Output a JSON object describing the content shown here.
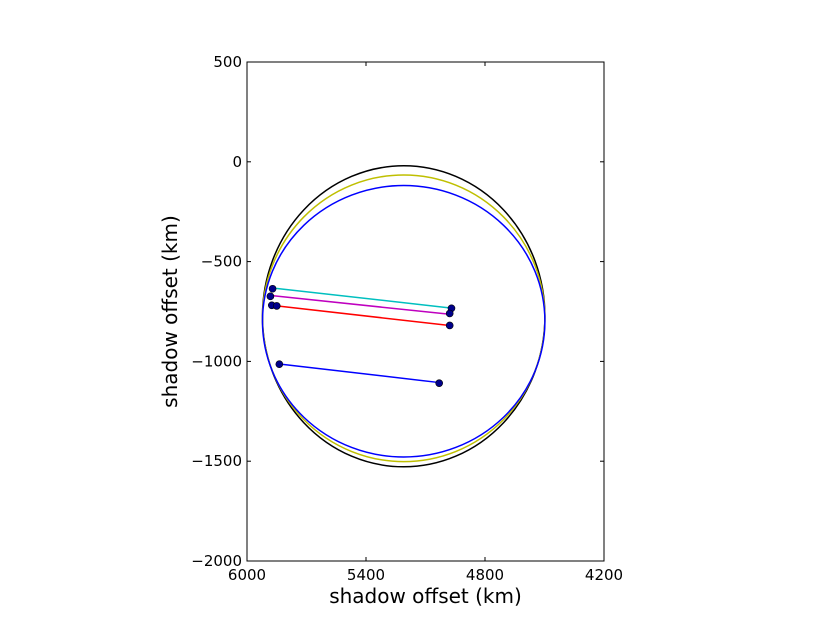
{
  "chart_data": {
    "type": "line",
    "xlabel": "shadow offset (km)",
    "ylabel": "shadow offset (km)",
    "xlim": [
      6000,
      4200
    ],
    "ylim": [
      -2000,
      500
    ],
    "x_inverted": true,
    "xticks": [
      6000,
      5400,
      4800,
      4200
    ],
    "xtick_labels": [
      "6000",
      "5400",
      "4800",
      "4200"
    ],
    "yticks": [
      500,
      0,
      -500,
      -1000,
      -1500,
      -2000
    ],
    "ytick_labels": [
      "500",
      "0",
      "−500",
      "−1000",
      "−1500",
      "−2000"
    ],
    "grid": false,
    "legend": "none",
    "ellipses": [
      {
        "color": "#000000",
        "cx": 5210,
        "cy": -774,
        "rx": 712,
        "ry": 754
      },
      {
        "color": "#bfbf00",
        "cx": 5210,
        "cy": -784,
        "rx": 712,
        "ry": 718
      },
      {
        "color": "#0000ff",
        "cx": 5210,
        "cy": -799,
        "rx": 712,
        "ry": 680
      }
    ],
    "chords": [
      {
        "color": "#00bfbf",
        "x": [
          5871,
          4969
        ],
        "y": [
          -632,
          -733
        ]
      },
      {
        "color": "#bf00bf",
        "x": [
          5879,
          4978
        ],
        "y": [
          -670,
          -764
        ]
      },
      {
        "color": "#ff0000",
        "x": [
          5850,
          4978
        ],
        "y": [
          -722,
          -820
        ]
      },
      {
        "color": "#0000ff",
        "x": [
          5837,
          5031
        ],
        "y": [
          -1013,
          -1106
        ]
      }
    ],
    "points": [
      {
        "x": [
          5871,
          5882,
          5875,
          5850,
          5837
        ],
        "y": [
          -636,
          -674,
          -719,
          -722,
          -1014
        ]
      },
      {
        "x": [
          4969,
          4978,
          4978,
          5031
        ],
        "y": [
          -734,
          -760,
          -820,
          -1109
        ]
      }
    ],
    "point_color": "#00008b"
  }
}
